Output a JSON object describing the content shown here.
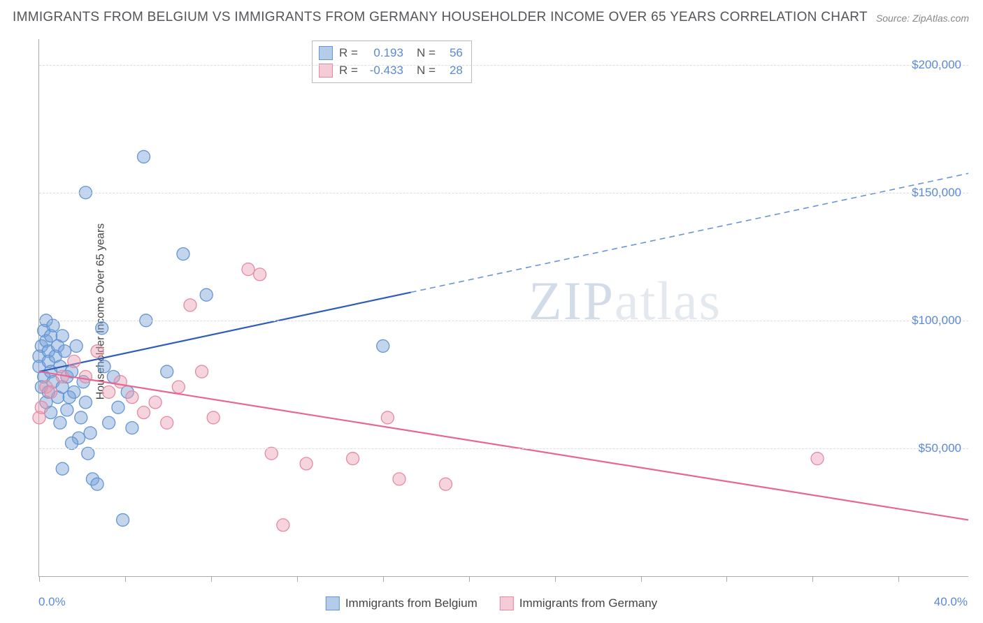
{
  "title": "IMMIGRANTS FROM BELGIUM VS IMMIGRANTS FROM GERMANY HOUSEHOLDER INCOME OVER 65 YEARS CORRELATION CHART",
  "source": "Source: ZipAtlas.com",
  "watermark_a": "ZIP",
  "watermark_b": "atlas",
  "ylabel": "Householder Income Over 65 years",
  "chart": {
    "type": "scatter",
    "xlim": [
      0,
      40
    ],
    "ylim": [
      0,
      210000
    ],
    "x_min_label": "0.0%",
    "x_max_label": "40.0%",
    "y_ticks": [
      50000,
      100000,
      150000,
      200000
    ],
    "y_tick_labels": [
      "$50,000",
      "$100,000",
      "$150,000",
      "$200,000"
    ],
    "x_tick_positions": [
      0,
      3.7,
      7.4,
      11.1,
      14.8,
      18.5,
      22.2,
      25.9,
      29.6,
      33.3,
      37.0
    ],
    "grid_color": "#dddddd",
    "axis_color": "#aaaaaa",
    "background_color": "#ffffff",
    "marker_radius": 9,
    "series": [
      {
        "name": "Immigrants from Belgium",
        "fill_color": "rgba(120,162,214,0.45)",
        "stroke_color": "#6495d4",
        "R": "0.193",
        "N": "56",
        "trend": {
          "solid": {
            "x1": 0,
            "y1": 80000,
            "x2": 16,
            "y2": 111000,
            "color": "#2d5db8",
            "width": 2.2
          },
          "dashed": {
            "x1": 16,
            "y1": 111000,
            "x2": 40,
            "y2": 157500,
            "color": "#6a93d6",
            "width": 1.6,
            "dash": "8,6"
          }
        },
        "points": [
          [
            0.0,
            86000
          ],
          [
            0.0,
            82000
          ],
          [
            0.1,
            90000
          ],
          [
            0.2,
            78000
          ],
          [
            0.1,
            74000
          ],
          [
            0.2,
            96000
          ],
          [
            0.3,
            100000
          ],
          [
            0.3,
            92000
          ],
          [
            0.4,
            88000
          ],
          [
            0.4,
            84000
          ],
          [
            0.5,
            80000
          ],
          [
            0.5,
            94000
          ],
          [
            0.6,
            98000
          ],
          [
            0.6,
            76000
          ],
          [
            0.7,
            86000
          ],
          [
            0.8,
            90000
          ],
          [
            0.8,
            70000
          ],
          [
            0.9,
            82000
          ],
          [
            1.0,
            94000
          ],
          [
            1.0,
            74000
          ],
          [
            1.1,
            88000
          ],
          [
            1.2,
            78000
          ],
          [
            1.2,
            65000
          ],
          [
            1.3,
            70000
          ],
          [
            1.4,
            80000
          ],
          [
            1.5,
            72000
          ],
          [
            1.6,
            90000
          ],
          [
            1.8,
            62000
          ],
          [
            1.9,
            76000
          ],
          [
            2.0,
            150000
          ],
          [
            2.0,
            68000
          ],
          [
            2.2,
            56000
          ],
          [
            2.3,
            38000
          ],
          [
            2.5,
            36000
          ],
          [
            2.7,
            97000
          ],
          [
            2.8,
            82000
          ],
          [
            3.0,
            60000
          ],
          [
            3.2,
            78000
          ],
          [
            3.4,
            66000
          ],
          [
            3.6,
            22000
          ],
          [
            3.8,
            72000
          ],
          [
            4.0,
            58000
          ],
          [
            4.5,
            164000
          ],
          [
            4.6,
            100000
          ],
          [
            5.5,
            80000
          ],
          [
            6.2,
            126000
          ],
          [
            7.2,
            110000
          ],
          [
            14.8,
            90000
          ],
          [
            1.0,
            42000
          ],
          [
            0.5,
            64000
          ],
          [
            0.3,
            68000
          ],
          [
            0.4,
            72000
          ],
          [
            1.7,
            54000
          ],
          [
            2.1,
            48000
          ],
          [
            1.4,
            52000
          ],
          [
            0.9,
            60000
          ]
        ]
      },
      {
        "name": "Immigrants from Germany",
        "fill_color": "rgba(235,160,180,0.45)",
        "stroke_color": "#e48aa4",
        "R": "-0.433",
        "N": "28",
        "trend": {
          "solid": {
            "x1": 0,
            "y1": 80000,
            "x2": 40,
            "y2": 22000,
            "color": "#e86693",
            "width": 2.2
          }
        },
        "points": [
          [
            0.0,
            62000
          ],
          [
            0.1,
            66000
          ],
          [
            0.3,
            74000
          ],
          [
            0.5,
            72000
          ],
          [
            1.0,
            78000
          ],
          [
            1.5,
            84000
          ],
          [
            2.0,
            78000
          ],
          [
            2.5,
            88000
          ],
          [
            3.0,
            72000
          ],
          [
            3.5,
            76000
          ],
          [
            4.0,
            70000
          ],
          [
            4.5,
            64000
          ],
          [
            5.0,
            68000
          ],
          [
            5.5,
            60000
          ],
          [
            6.5,
            106000
          ],
          [
            7.0,
            80000
          ],
          [
            7.5,
            62000
          ],
          [
            9.0,
            120000
          ],
          [
            9.5,
            118000
          ],
          [
            10.0,
            48000
          ],
          [
            10.5,
            20000
          ],
          [
            11.5,
            44000
          ],
          [
            13.5,
            46000
          ],
          [
            15.0,
            62000
          ],
          [
            15.5,
            38000
          ],
          [
            17.5,
            36000
          ],
          [
            33.5,
            46000
          ],
          [
            6.0,
            74000
          ]
        ]
      }
    ]
  },
  "legend_stats_labels": {
    "R": "R =",
    "N": "N ="
  },
  "bottom_legend": [
    "Immigrants from Belgium",
    "Immigrants from Germany"
  ],
  "colors": {
    "tick_label": "#5b89d6",
    "title": "#555559",
    "watermark": "#e4e9f0"
  }
}
